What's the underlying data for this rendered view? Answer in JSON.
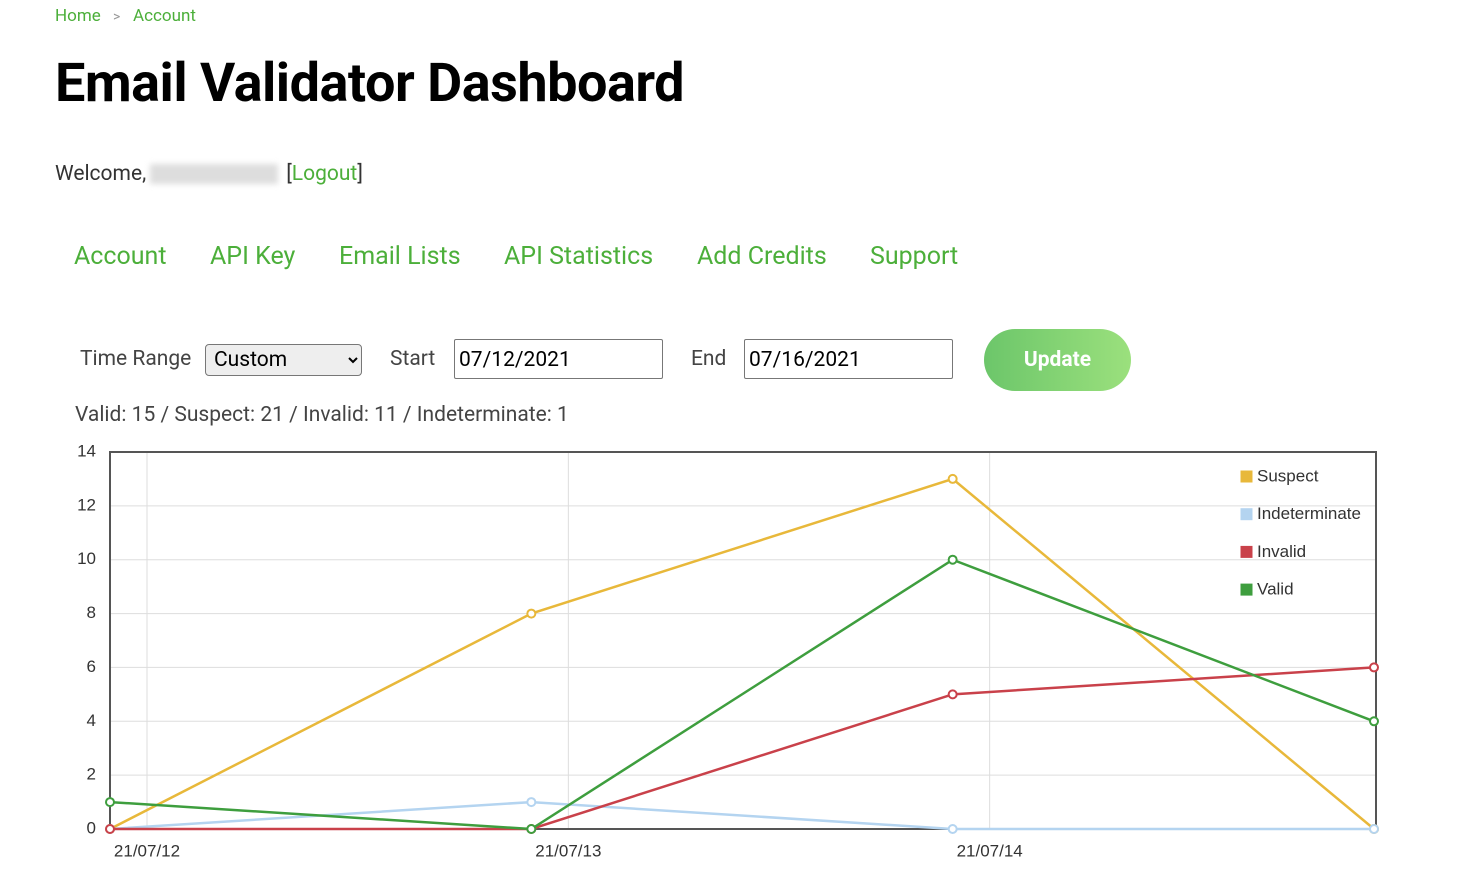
{
  "breadcrumb": {
    "items": [
      "Home",
      "Account"
    ],
    "separator": ">"
  },
  "title": "Email Validator Dashboard",
  "welcome": {
    "text": "Welcome,",
    "brackets": [
      "[",
      "]"
    ],
    "logout": "Logout"
  },
  "nav": [
    "Account",
    "API Key",
    "Email Lists",
    "API Statistics",
    "Add Credits",
    "Support"
  ],
  "form": {
    "time_range_label": "Time Range",
    "time_range_value": "Custom",
    "start_label": "Start",
    "start_value": "07/12/2021",
    "end_label": "End",
    "end_value": "07/16/2021",
    "button": "Update"
  },
  "summary": "Valid: 15 / Suspect: 21 / Invalid: 11 / Indeterminate: 1",
  "chart_data": {
    "type": "line",
    "categories": [
      "21/07/12",
      "21/07/13",
      "21/07/14",
      null
    ],
    "series": [
      {
        "name": "Suspect",
        "color": "#e8b83a",
        "values": [
          0,
          8,
          13,
          0
        ]
      },
      {
        "name": "Indeterminate",
        "color": "#b4d4f0",
        "values": [
          0,
          1,
          0,
          0
        ]
      },
      {
        "name": "Invalid",
        "color": "#c9414a",
        "values": [
          0,
          0,
          5,
          6
        ]
      },
      {
        "name": "Valid",
        "color": "#3e9e3e",
        "values": [
          1,
          0,
          10,
          4
        ]
      }
    ],
    "ylim": [
      0,
      14
    ],
    "yticks": [
      0,
      2,
      4,
      6,
      8,
      10,
      12,
      14
    ],
    "grid": true,
    "legend": "top-right"
  }
}
